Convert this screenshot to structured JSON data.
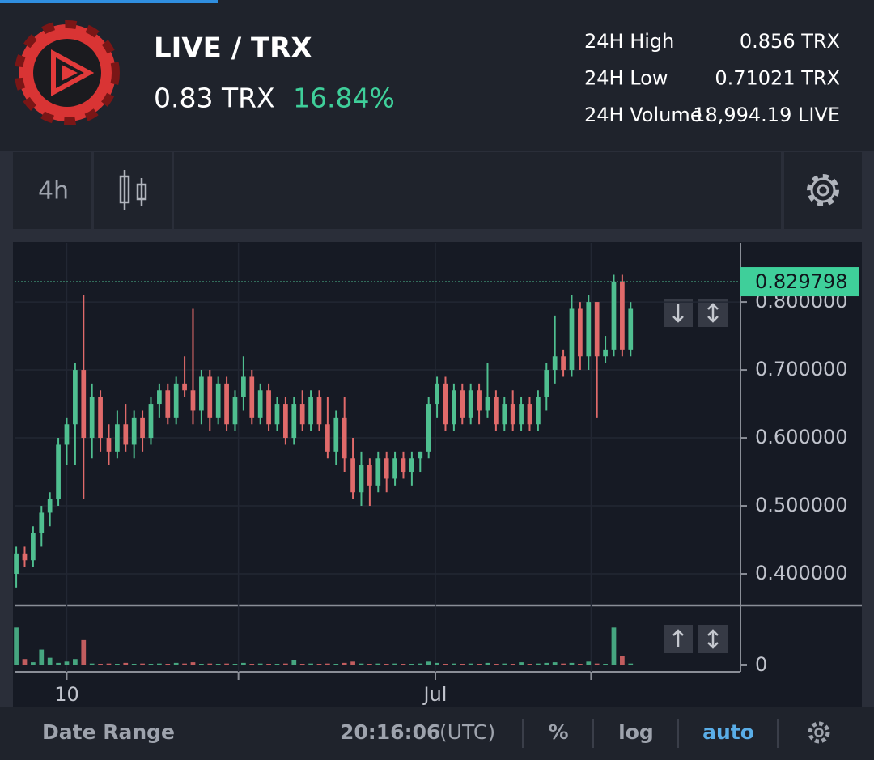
{
  "header": {
    "pair": "LIVE / TRX",
    "price": "0.83 TRX",
    "change": "16.84%"
  },
  "stats": [
    {
      "label": "24H High",
      "value": "0.856 TRX"
    },
    {
      "label": "24H Low",
      "value": "0.71021 TRX"
    },
    {
      "label": "24H Volume",
      "value": "18,994.19 LIVE"
    }
  ],
  "toolbar": {
    "interval": "4h"
  },
  "chart_data": {
    "type": "candlestick",
    "up_color": "#4fbf90",
    "down_color": "#e06a6a",
    "ohlc": [
      [
        0.4,
        0.44,
        0.38,
        0.43
      ],
      [
        0.43,
        0.44,
        0.41,
        0.42
      ],
      [
        0.42,
        0.47,
        0.41,
        0.46
      ],
      [
        0.46,
        0.5,
        0.44,
        0.49
      ],
      [
        0.49,
        0.52,
        0.47,
        0.51
      ],
      [
        0.51,
        0.6,
        0.5,
        0.59
      ],
      [
        0.59,
        0.63,
        0.56,
        0.62
      ],
      [
        0.62,
        0.71,
        0.56,
        0.7
      ],
      [
        0.7,
        0.81,
        0.51,
        0.6
      ],
      [
        0.6,
        0.68,
        0.57,
        0.66
      ],
      [
        0.66,
        0.67,
        0.58,
        0.6
      ],
      [
        0.6,
        0.62,
        0.56,
        0.58
      ],
      [
        0.58,
        0.64,
        0.57,
        0.62
      ],
      [
        0.62,
        0.65,
        0.58,
        0.59
      ],
      [
        0.59,
        0.64,
        0.57,
        0.63
      ],
      [
        0.63,
        0.64,
        0.58,
        0.6
      ],
      [
        0.6,
        0.66,
        0.59,
        0.65
      ],
      [
        0.65,
        0.68,
        0.63,
        0.67
      ],
      [
        0.67,
        0.68,
        0.62,
        0.63
      ],
      [
        0.63,
        0.69,
        0.62,
        0.68
      ],
      [
        0.68,
        0.72,
        0.66,
        0.67
      ],
      [
        0.67,
        0.79,
        0.62,
        0.64
      ],
      [
        0.64,
        0.7,
        0.62,
        0.69
      ],
      [
        0.69,
        0.7,
        0.61,
        0.63
      ],
      [
        0.63,
        0.69,
        0.62,
        0.68
      ],
      [
        0.68,
        0.69,
        0.61,
        0.62
      ],
      [
        0.62,
        0.67,
        0.61,
        0.66
      ],
      [
        0.66,
        0.72,
        0.64,
        0.69
      ],
      [
        0.69,
        0.7,
        0.62,
        0.63
      ],
      [
        0.63,
        0.68,
        0.62,
        0.67
      ],
      [
        0.67,
        0.68,
        0.61,
        0.62
      ],
      [
        0.62,
        0.66,
        0.61,
        0.65
      ],
      [
        0.65,
        0.66,
        0.59,
        0.6
      ],
      [
        0.6,
        0.66,
        0.59,
        0.65
      ],
      [
        0.65,
        0.67,
        0.61,
        0.62
      ],
      [
        0.62,
        0.67,
        0.61,
        0.66
      ],
      [
        0.66,
        0.67,
        0.61,
        0.62
      ],
      [
        0.62,
        0.66,
        0.57,
        0.58
      ],
      [
        0.58,
        0.64,
        0.56,
        0.63
      ],
      [
        0.63,
        0.66,
        0.55,
        0.57
      ],
      [
        0.57,
        0.6,
        0.51,
        0.52
      ],
      [
        0.52,
        0.58,
        0.5,
        0.56
      ],
      [
        0.56,
        0.57,
        0.5,
        0.53
      ],
      [
        0.53,
        0.58,
        0.52,
        0.57
      ],
      [
        0.57,
        0.58,
        0.52,
        0.54
      ],
      [
        0.54,
        0.58,
        0.53,
        0.57
      ],
      [
        0.57,
        0.58,
        0.54,
        0.55
      ],
      [
        0.55,
        0.58,
        0.53,
        0.57
      ],
      [
        0.57,
        0.58,
        0.55,
        0.58
      ],
      [
        0.58,
        0.66,
        0.57,
        0.65
      ],
      [
        0.65,
        0.69,
        0.63,
        0.68
      ],
      [
        0.68,
        0.69,
        0.61,
        0.62
      ],
      [
        0.62,
        0.68,
        0.61,
        0.67
      ],
      [
        0.67,
        0.68,
        0.62,
        0.63
      ],
      [
        0.63,
        0.68,
        0.62,
        0.67
      ],
      [
        0.67,
        0.68,
        0.62,
        0.64
      ],
      [
        0.64,
        0.71,
        0.63,
        0.66
      ],
      [
        0.66,
        0.67,
        0.61,
        0.62
      ],
      [
        0.62,
        0.66,
        0.61,
        0.65
      ],
      [
        0.65,
        0.67,
        0.61,
        0.62
      ],
      [
        0.62,
        0.66,
        0.61,
        0.65
      ],
      [
        0.65,
        0.66,
        0.61,
        0.62
      ],
      [
        0.62,
        0.67,
        0.61,
        0.66
      ],
      [
        0.66,
        0.71,
        0.64,
        0.7
      ],
      [
        0.7,
        0.78,
        0.68,
        0.72
      ],
      [
        0.72,
        0.73,
        0.69,
        0.7
      ],
      [
        0.7,
        0.81,
        0.69,
        0.79
      ],
      [
        0.79,
        0.8,
        0.7,
        0.72
      ],
      [
        0.72,
        0.81,
        0.7,
        0.8
      ],
      [
        0.8,
        0.8,
        0.63,
        0.72
      ],
      [
        0.72,
        0.75,
        0.71,
        0.73
      ],
      [
        0.73,
        0.84,
        0.72,
        0.83
      ],
      [
        0.83,
        0.84,
        0.72,
        0.73
      ],
      [
        0.73,
        0.8,
        0.72,
        0.79
      ]
    ],
    "volume": [
      60,
      10,
      5,
      25,
      12,
      4,
      6,
      10,
      40,
      3,
      2,
      3,
      2,
      4,
      2,
      3,
      2,
      3,
      2,
      4,
      3,
      5,
      2,
      3,
      2,
      3,
      2,
      4,
      2,
      3,
      2,
      2,
      3,
      8,
      2,
      3,
      2,
      3,
      2,
      4,
      6,
      3,
      2,
      3,
      2,
      3,
      2,
      2,
      3,
      6,
      4,
      2,
      3,
      2,
      3,
      2,
      4,
      2,
      3,
      2,
      5,
      2,
      3,
      4,
      5,
      3,
      4,
      2,
      6,
      3,
      2,
      60,
      15,
      3
    ],
    "xlim": [
      -0.2,
      86.05
    ],
    "xticks": [
      {
        "value": 6,
        "label": "10"
      },
      {
        "value": 26.4,
        "label": null
      },
      {
        "value": 49.8,
        "label": "Jul"
      },
      {
        "value": 68.3,
        "label": null
      }
    ],
    "ylim": [
      0.3536,
      0.887
    ],
    "yticks": [
      {
        "value": 0.4,
        "label": "0.400000"
      },
      {
        "value": 0.5,
        "label": "0.500000"
      },
      {
        "value": 0.6,
        "label": "0.600000"
      },
      {
        "value": 0.7,
        "label": "0.700000"
      },
      {
        "value": 0.8,
        "label": "0.800000"
      }
    ],
    "vlim": [
      0,
      90
    ],
    "vticks": [
      0
    ],
    "last_price": 0.829798,
    "grid": true
  },
  "footer": {
    "date_range": "Date Range",
    "time": "20:16:06",
    "timezone": "(UTC)",
    "percent": "%",
    "log": "log",
    "auto": "auto"
  }
}
